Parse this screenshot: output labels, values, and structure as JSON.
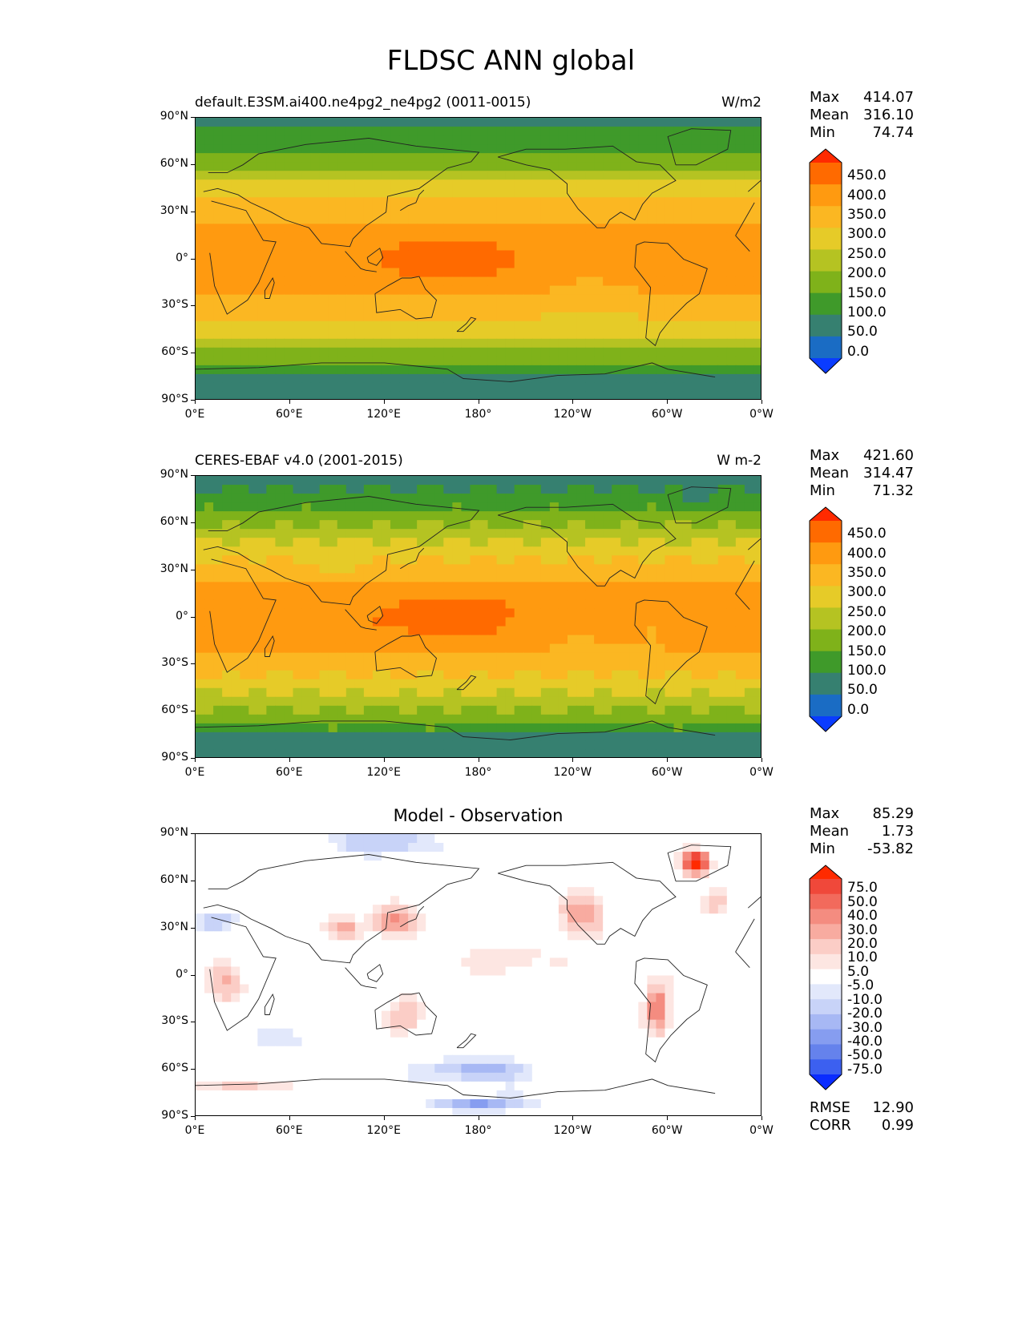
{
  "page": {
    "title": "FLDSC ANN global"
  },
  "axes": {
    "lat_labels": [
      "90°N",
      "60°N",
      "30°N",
      "0°",
      "30°S",
      "60°S",
      "90°S"
    ],
    "lon_labels": [
      "0°E",
      "60°E",
      "120°E",
      "180°",
      "120°W",
      "60°W",
      "0°W"
    ]
  },
  "panels": [
    {
      "name": "model",
      "title": "default.E3SM.ai400.ne4pg2_ne4pg2 (0011-0015)",
      "units": "W/m2",
      "stats": {
        "max_label": "Max",
        "max": "414.07",
        "mean_label": "Mean",
        "mean": "316.10",
        "min_label": "Min",
        "min": "74.74"
      },
      "colorbar_labels": [
        "450.0",
        "400.0",
        "350.0",
        "300.0",
        "250.0",
        "200.0",
        "150.0",
        "100.0",
        "50.0",
        "0.0"
      ]
    },
    {
      "name": "obs",
      "title": "CERES-EBAF v4.0 (2001-2015)",
      "units": "W m-2",
      "stats": {
        "max_label": "Max",
        "max": "421.60",
        "mean_label": "Mean",
        "mean": "314.47",
        "min_label": "Min",
        "min": "71.32"
      },
      "colorbar_labels": [
        "450.0",
        "400.0",
        "350.0",
        "300.0",
        "250.0",
        "200.0",
        "150.0",
        "100.0",
        "50.0",
        "0.0"
      ]
    },
    {
      "name": "diff",
      "title": "Model - Observation",
      "units": "",
      "stats": {
        "max_label": "Max",
        "max": "85.29",
        "mean_label": "Mean",
        "mean": "1.73",
        "min_label": "Min",
        "min": "-53.82"
      },
      "colorbar_labels": [
        "75.0",
        "50.0",
        "40.0",
        "30.0",
        "20.0",
        "10.0",
        "5.0",
        "-5.0",
        "-10.0",
        "-20.0",
        "-30.0",
        "-40.0",
        "-50.0",
        "-75.0"
      ],
      "rmse_label": "RMSE",
      "rmse": "12.90",
      "corr_label": "CORR",
      "corr": "0.99"
    }
  ],
  "colors": {
    "abs_scale": [
      "#ff2a00",
      "#ff6a00",
      "#ff9a10",
      "#fbb722",
      "#e6cb28",
      "#b5c322",
      "#7fb21a",
      "#3f9a2a",
      "#368070",
      "#1a6cc4",
      "#0a3cff"
    ],
    "diff_scale": [
      "#ff2a00",
      "#f0483a",
      "#f26a5c",
      "#f48c80",
      "#f8aba0",
      "#fbcdc6",
      "#fde6e2",
      "#ffffff",
      "#e2e8fb",
      "#c8d3f8",
      "#a7b8f4",
      "#869df0",
      "#6582ec",
      "#3c60f0",
      "#0a2cff"
    ]
  }
}
